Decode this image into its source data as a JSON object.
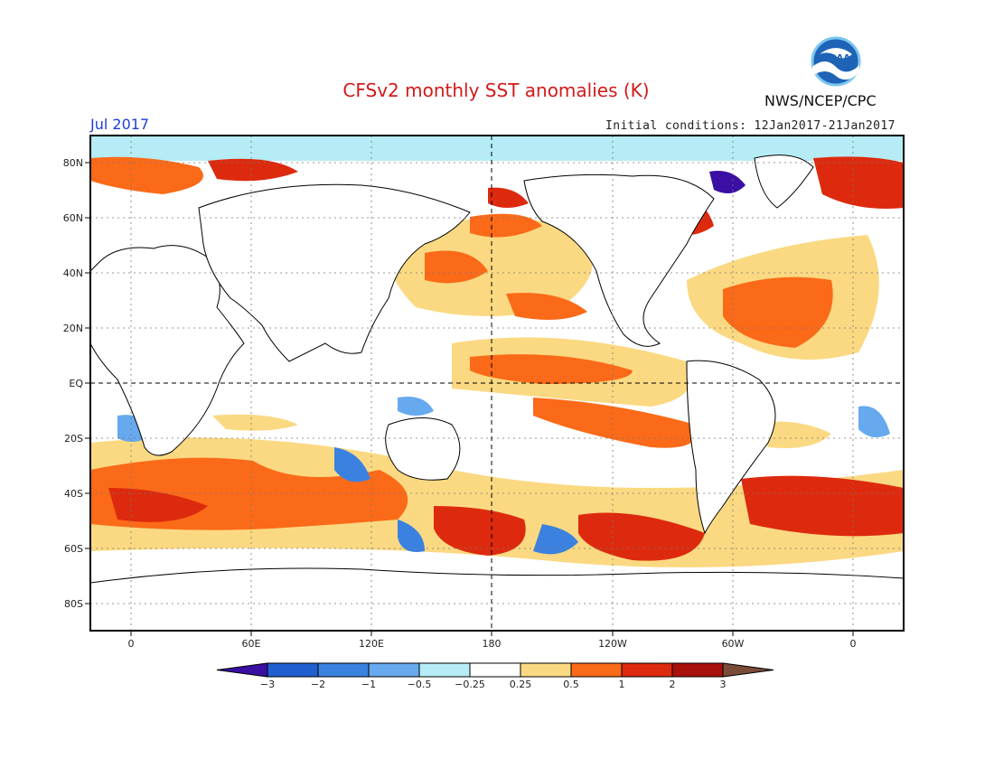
{
  "header": {
    "title": "CFSv2 monthly SST anomalies (K)",
    "agency": "NWS/NCEP/CPC",
    "logo_text": "NOAA",
    "valid_month": "Jul 2017",
    "initial_conditions": "Initial conditions: 12Jan2017-21Jan2017"
  },
  "axes": {
    "lat_labels": [
      "80N",
      "60N",
      "40N",
      "20N",
      "EQ",
      "20S",
      "40S",
      "60S",
      "80S"
    ],
    "lon_labels": [
      "0",
      "60E",
      "120E",
      "180",
      "120W",
      "60W",
      "0"
    ]
  },
  "colorbar": {
    "labels": [
      "-3",
      "-2",
      "-1",
      "-0.5",
      "-0.25",
      "0.25",
      "0.5",
      "1",
      "2",
      "3"
    ],
    "colors": [
      "#3a0fa3",
      "#1f5fd0",
      "#3b82e0",
      "#66a9ee",
      "#b5ecf5",
      "#ffffff",
      "#fbd982",
      "#fb6a18",
      "#dd2a0e",
      "#a8100c",
      "#7b4a38"
    ]
  },
  "colors": {
    "title": "#d21919",
    "valid_month": "#1e3fd6",
    "frame": "#000000",
    "land": "#ffffff"
  }
}
